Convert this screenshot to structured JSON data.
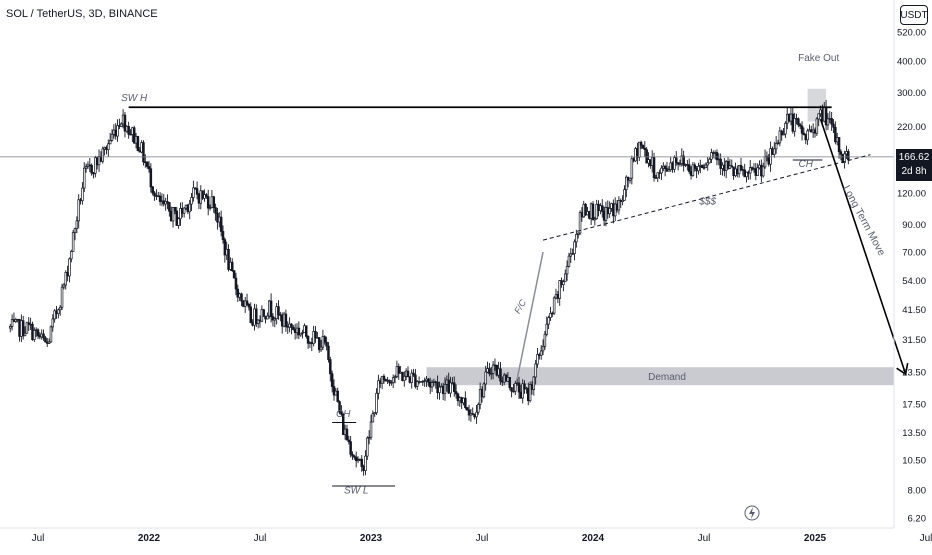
{
  "header": {
    "title": "SOL / TetherUS, 3D, BINANCE",
    "currency": "USDT",
    "last_price": "166.62",
    "countdown": "2d 8h"
  },
  "colors": {
    "candle": "#131722",
    "zone": "#c9cbd0",
    "text_annot": "#5a5d6e",
    "grid_line": "#787b86"
  },
  "chart_data": {
    "type": "candlestick",
    "title": "SOL / TetherUS, 3D, BINANCE",
    "yscale": "log",
    "ylim": [
      6.2,
      520
    ],
    "xlabel": "",
    "ylabel": "",
    "x_ticks": [
      "Jul",
      "2022",
      "Jul",
      "2023",
      "Jul",
      "2024",
      "Jul",
      "2025",
      "Jul"
    ],
    "y_ticks": [
      "520.00",
      "400.00",
      "300.00",
      "220.00",
      "166.62",
      "120.00",
      "90.00",
      "70.00",
      "54.00",
      "41.50",
      "31.50",
      "23.50",
      "17.50",
      "13.50",
      "10.50",
      "8.00",
      "6.20"
    ],
    "series": [
      {
        "x": [
          "2021-06",
          "2021-07",
          "2021-08",
          "2021-09",
          "2021-10",
          "2021-11",
          "2021-12",
          "2022-01",
          "2022-02",
          "2022-03",
          "2022-04",
          "2022-05",
          "2022-06",
          "2022-07",
          "2022-08",
          "2022-09",
          "2022-10",
          "2022-11",
          "2022-12",
          "2023-01",
          "2023-02",
          "2023-03",
          "2023-04",
          "2023-05",
          "2023-06",
          "2023-07",
          "2023-08",
          "2023-09",
          "2023-10",
          "2023-11",
          "2023-12",
          "2024-01",
          "2024-02",
          "2024-03",
          "2024-04",
          "2024-05",
          "2024-06",
          "2024-07",
          "2024-08",
          "2024-09",
          "2024-10",
          "2024-11",
          "2024-12",
          "2025-01",
          "2025-02"
        ],
        "close": [
          35,
          30,
          55,
          140,
          170,
          240,
          185,
          110,
          95,
          120,
          110,
          55,
          38,
          42,
          36,
          33,
          30,
          14,
          9.5,
          22,
          23,
          22,
          21,
          20,
          16,
          25,
          21,
          19,
          35,
          58,
          105,
          98,
          108,
          190,
          140,
          165,
          148,
          175,
          145,
          140,
          160,
          240,
          200,
          250,
          166.62
        ]
      }
    ],
    "annotations": [
      {
        "text": "SW H"
      },
      {
        "text": "Fake Out"
      },
      {
        "text": "$$$"
      },
      {
        "text": "CH"
      },
      {
        "text": "Long Term Move"
      },
      {
        "text": "Demand"
      },
      {
        "text": "CH"
      },
      {
        "text": "SW L"
      },
      {
        "text": "F/C"
      }
    ],
    "levels": {
      "resistance": 262,
      "last_price": 166.62,
      "demand_zone": [
        20.8,
        24.5
      ],
      "swing_low": 8.3
    }
  }
}
